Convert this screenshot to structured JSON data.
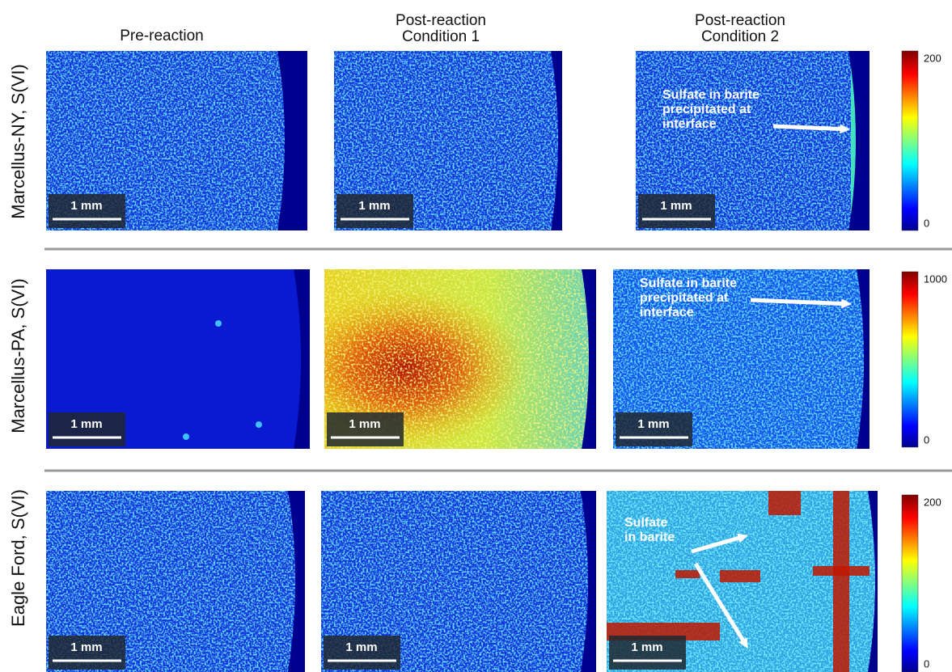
{
  "column_headers": [
    [
      "Pre-reaction"
    ],
    [
      "Post-reaction",
      "Condition 1"
    ],
    [
      "Post-reaction",
      "Condition 2"
    ]
  ],
  "rows": [
    {
      "label": "Marcellus-NY, S(VI)",
      "colorbar": {
        "max": 200,
        "min": 0
      },
      "panels": [
        {
          "scale_bar": "1 mm"
        },
        {
          "scale_bar": "1 mm"
        },
        {
          "scale_bar": "1 mm",
          "annotation": [
            "Sulfate in barite",
            "precipitated at",
            "interface"
          ]
        }
      ]
    },
    {
      "label": "Marcellus-PA, S(VI)",
      "colorbar": {
        "max": 1000,
        "min": 0
      },
      "panels": [
        {
          "scale_bar": "1 mm"
        },
        {
          "scale_bar": "1 mm"
        },
        {
          "scale_bar": "1 mm",
          "annotation": [
            "Sulfate in barite",
            "precipitated at",
            "interface"
          ]
        }
      ]
    },
    {
      "label": "Eagle Ford, S(VI)",
      "colorbar": {
        "max": 200,
        "min": 0
      },
      "panels": [
        {
          "scale_bar": "1 mm"
        },
        {
          "scale_bar": "1 mm"
        },
        {
          "scale_bar": "1 mm",
          "annotation": [
            "Sulfate",
            "in barite"
          ]
        }
      ]
    }
  ]
}
